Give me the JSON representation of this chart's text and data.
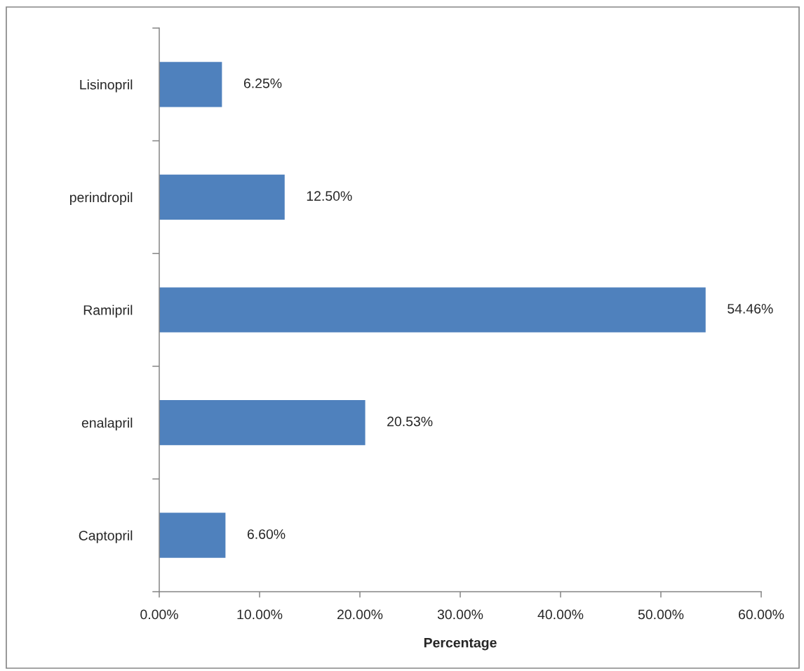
{
  "chart_data": {
    "type": "bar",
    "orientation": "horizontal",
    "categories": [
      "Lisinopril",
      "perindropil",
      "Ramipril",
      "enalapril",
      "Captopril"
    ],
    "values": [
      6.25,
      12.5,
      54.46,
      20.53,
      6.6
    ],
    "value_labels": [
      "6.25%",
      "12.50%",
      "54.46%",
      "20.53%",
      "6.60%"
    ],
    "color": "#4f81bd",
    "xlabel": "Percentage",
    "xlim": [
      0,
      60
    ],
    "xticks": [
      {
        "value": 0,
        "label": "0.00%"
      },
      {
        "value": 10,
        "label": "10.00%"
      },
      {
        "value": 20,
        "label": "20.00%"
      },
      {
        "value": 30,
        "label": "30.00%"
      },
      {
        "value": 40,
        "label": "40.00%"
      },
      {
        "value": 50,
        "label": "50.00%"
      },
      {
        "value": 60,
        "label": "60.00%"
      }
    ]
  }
}
